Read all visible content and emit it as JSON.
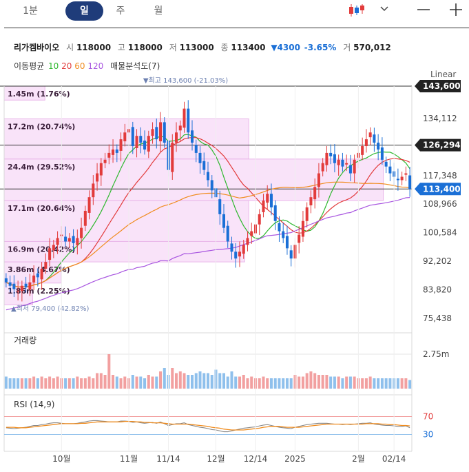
{
  "topbar": {
    "tabs": [
      "1분",
      "일",
      "주",
      "월"
    ],
    "active_tab": "일",
    "chart_type_icon": "candlestick-icon",
    "dropdown_icon": "chevron-down-icon",
    "minimize_icon": "minus-icon",
    "expand_icon": "plus-icon"
  },
  "stock": {
    "name": "리가켐바이오",
    "open_label": "시",
    "open": "118000",
    "high_label": "고",
    "high": "118000",
    "low_label": "저",
    "low": "113000",
    "close_label": "종",
    "close": "113400",
    "change": "▼4300",
    "change_pct": "-3.65%",
    "volume_label": "거",
    "volume": "570,012"
  },
  "indicators": {
    "ma_label": "이동평균",
    "ma": [
      {
        "period": "10",
        "color": "#2eb82e"
      },
      {
        "period": "20",
        "color": "#e23b3b"
      },
      {
        "period": "60",
        "color": "#f08c1e"
      },
      {
        "period": "120",
        "color": "#a855e0"
      }
    ],
    "volume_profile_label": "매물분석도(7)",
    "scale_label": "Linear"
  },
  "price_axis": {
    "ticks": [
      "134,112",
      "117,348",
      "108,966",
      "100,584",
      "92,202",
      "83,820",
      "75,438"
    ],
    "markers": [
      {
        "value": "143,600",
        "price": 143600
      },
      {
        "value": "126,294",
        "price": 126294
      },
      {
        "value": "113,400",
        "price": 113400,
        "current": true
      }
    ]
  },
  "annotations": {
    "high": "▼최고 143,600 (-21.03%)",
    "low": "▲최저 79,400 (42.82%)",
    "profile": [
      {
        "text": "1.45m (1.76%)",
        "from": 139500,
        "to": 143600,
        "len": 0.1
      },
      {
        "text": "17.2m (20.74%)",
        "from": 122200,
        "to": 134000,
        "len": 0.6
      },
      {
        "text": "24.4m (29.52%)",
        "from": 110000,
        "to": 122200,
        "len": 0.93
      },
      {
        "text": "17.1m (20.64%)",
        "from": 98000,
        "to": 110000,
        "len": 0.6
      },
      {
        "text": "16.9m (20.42%)",
        "from": 92000,
        "to": 98000,
        "len": 0.59
      },
      {
        "text": "3.86m (4.67%)",
        "from": 85800,
        "to": 92000,
        "len": 0.14
      },
      {
        "text": "1.86m (2.25%)",
        "from": 79400,
        "to": 85800,
        "len": 0.07
      }
    ]
  },
  "volume_panel": {
    "label": "거래량",
    "tick": "2.75m"
  },
  "rsi_panel": {
    "label": "RSI (14,9)",
    "upper": "70",
    "lower": "30"
  },
  "x_axis": {
    "ticks": [
      {
        "label": "10월",
        "i": 14
      },
      {
        "label": "11월",
        "i": 31
      },
      {
        "label": "11/14",
        "i": 41
      },
      {
        "label": "12월",
        "i": 53
      },
      {
        "label": "12/14",
        "i": 63
      },
      {
        "label": "2025",
        "i": 73
      },
      {
        "label": "2월",
        "i": 89
      },
      {
        "label": "02/14",
        "i": 98
      }
    ]
  },
  "chart_data": {
    "type": "candlestick",
    "ylim": [
      75438,
      143600
    ],
    "close": [
      86000,
      85000,
      84000,
      83500,
      85000,
      84500,
      86000,
      88000,
      87500,
      90000,
      92000,
      96000,
      97000,
      99000,
      100000,
      98000,
      99000,
      97500,
      99000,
      102000,
      107000,
      111000,
      115000,
      118000,
      121000,
      122000,
      124000,
      125000,
      124000,
      128000,
      130000,
      131000,
      126000,
      129000,
      127000,
      125000,
      129000,
      131000,
      128000,
      133000,
      127000,
      119000,
      127000,
      130000,
      132000,
      137000,
      130000,
      127000,
      124000,
      121000,
      119000,
      116000,
      113000,
      111000,
      106000,
      102000,
      98000,
      95000,
      93000,
      95000,
      97000,
      99000,
      101000,
      103000,
      106000,
      110000,
      112000,
      108000,
      104000,
      101000,
      99000,
      96000,
      93000,
      97000,
      100000,
      104000,
      108000,
      111000,
      114000,
      118000,
      121000,
      124000,
      123000,
      121000,
      122000,
      120000,
      121000,
      118000,
      122000,
      124000,
      126000,
      128000,
      130000,
      127000,
      125000,
      122000,
      120000,
      118000,
      117000,
      116000,
      117000,
      118000,
      113400
    ],
    "volume_ratio": [
      0.35,
      0.3,
      0.3,
      0.3,
      0.3,
      0.3,
      0.3,
      0.35,
      0.3,
      0.35,
      0.3,
      0.35,
      0.3,
      0.35,
      0.3,
      0.3,
      0.3,
      0.3,
      0.35,
      0.3,
      0.3,
      0.35,
      0.3,
      0.45,
      0.45,
      0.4,
      1.0,
      0.4,
      0.35,
      0.3,
      0.35,
      0.3,
      0.4,
      0.35,
      0.35,
      0.3,
      0.4,
      0.35,
      0.35,
      0.5,
      0.6,
      0.4,
      0.6,
      0.45,
      0.5,
      0.45,
      0.4,
      0.4,
      0.45,
      0.5,
      0.45,
      0.45,
      0.4,
      0.55,
      0.45,
      0.45,
      0.35,
      0.5,
      0.35,
      0.35,
      0.4,
      0.3,
      0.35,
      0.3,
      0.3,
      0.35,
      0.3,
      0.3,
      0.3,
      0.3,
      0.3,
      0.3,
      0.3,
      0.4,
      0.35,
      0.35,
      0.45,
      0.5,
      0.45,
      0.4,
      0.4,
      0.4,
      0.35,
      0.35,
      0.35,
      0.3,
      0.35,
      0.35,
      0.35,
      0.3,
      0.3,
      0.3,
      0.35,
      0.3,
      0.3,
      0.3,
      0.3,
      0.3,
      0.3,
      0.3,
      0.3,
      0.3,
      0.25
    ],
    "rsi": [
      45,
      44,
      43,
      44,
      45,
      46,
      48,
      50,
      50,
      52,
      53,
      55,
      56,
      56,
      55,
      54,
      54,
      54,
      55,
      57,
      58,
      60,
      61,
      61,
      60,
      59,
      58,
      58,
      58,
      60,
      60,
      59,
      57,
      58,
      56,
      55,
      56,
      57,
      55,
      58,
      54,
      50,
      52,
      54,
      54,
      56,
      52,
      50,
      48,
      46,
      45,
      43,
      41,
      40,
      38,
      36,
      36,
      38,
      40,
      42,
      44,
      45,
      46,
      47,
      49,
      51,
      52,
      50,
      48,
      46,
      45,
      44,
      43,
      46,
      48,
      50,
      52,
      53,
      54,
      55,
      55,
      55,
      54,
      53,
      53,
      52,
      53,
      52,
      53,
      54,
      55,
      55,
      56,
      53,
      52,
      51,
      50,
      50,
      49,
      48,
      48,
      49,
      45
    ],
    "rsi_signal": [
      46,
      46,
      46,
      45,
      45,
      45,
      46,
      47,
      48,
      49,
      50,
      51,
      52,
      53,
      54,
      54,
      54,
      54,
      54,
      55,
      55,
      56,
      57,
      58,
      58,
      58,
      58,
      58,
      58,
      58,
      59,
      59,
      59,
      58,
      58,
      57,
      57,
      56,
      56,
      56,
      55,
      54,
      53,
      53,
      53,
      53,
      53,
      52,
      51,
      50,
      49,
      48,
      46,
      45,
      44,
      42,
      41,
      40,
      40,
      40,
      40,
      41,
      42,
      43,
      44,
      46,
      47,
      48,
      48,
      48,
      47,
      46,
      46,
      46,
      46,
      47,
      48,
      49,
      50,
      51,
      52,
      53,
      53,
      53,
      53,
      53,
      53,
      53,
      53,
      53,
      53,
      54,
      54,
      54,
      54,
      53,
      53,
      52,
      52,
      51,
      50,
      50,
      49
    ]
  }
}
